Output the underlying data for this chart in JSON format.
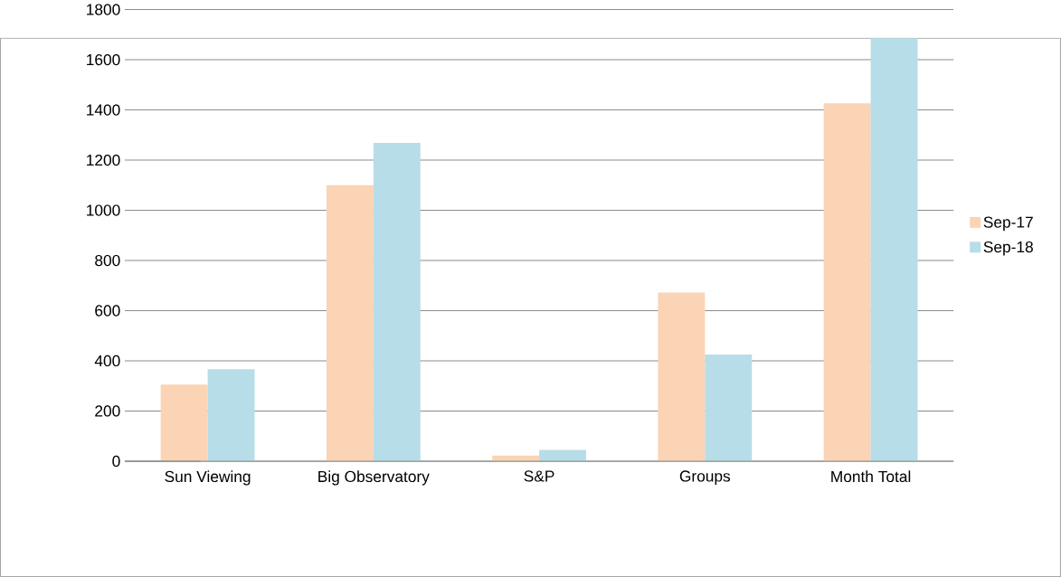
{
  "chart_data": {
    "type": "bar",
    "categories": [
      "Sun Viewing",
      "Big Observatory",
      "S&P",
      "Groups",
      "Month Total"
    ],
    "series": [
      {
        "name": "Sep-17",
        "color": "#fad4b4",
        "values": [
          305,
          1100,
          22,
          672,
          1426
        ]
      },
      {
        "name": "Sep-18",
        "color": "#b7dde8",
        "values": [
          367,
          1269,
          45,
          425,
          1686
        ]
      }
    ],
    "ylim": [
      0,
      1800
    ],
    "yticks": [
      0,
      200,
      400,
      600,
      800,
      1000,
      1200,
      1400,
      1600,
      1800
    ],
    "grid": "y",
    "legend": "right"
  }
}
